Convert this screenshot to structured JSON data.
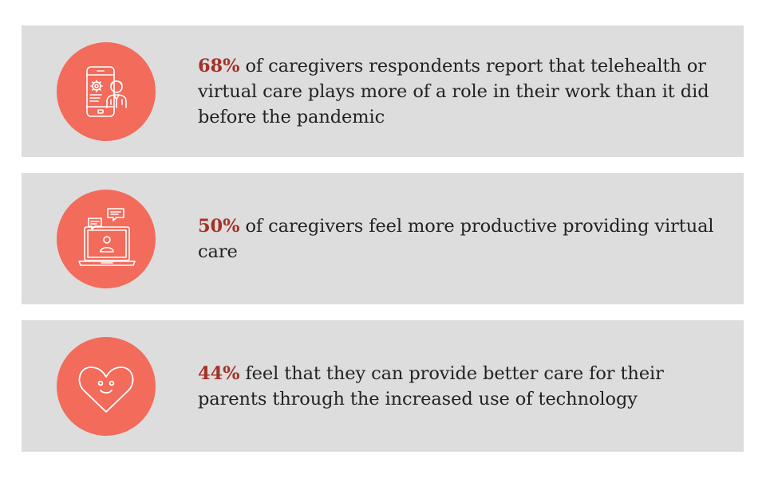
{
  "colors": {
    "card_background": "#dddddd",
    "icon_circle": "#f26b5b",
    "highlight_percent": "#a33229",
    "body_text": "#222222"
  },
  "stats": [
    {
      "icon": "mobile-doctor-icon",
      "percent": "68%",
      "text": " of caregivers respondents report that telehealth or virtual care plays more of a role in their work than it did before the pandemic"
    },
    {
      "icon": "laptop-chat-icon",
      "percent": "50%",
      "text": " of caregivers feel more productive providing virtual care"
    },
    {
      "icon": "smiling-heart-icon",
      "percent": "44%",
      "text": " feel that they can provide better care for their parents through the increased use of technology"
    }
  ]
}
